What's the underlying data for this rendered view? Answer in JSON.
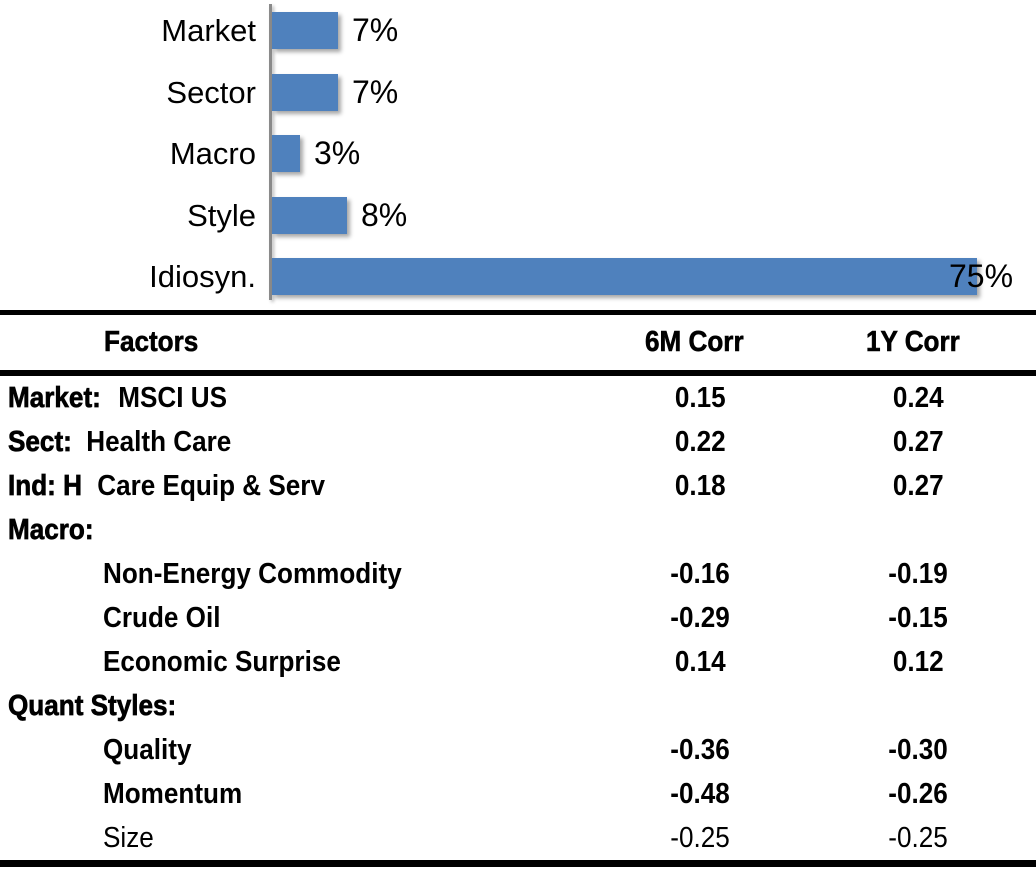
{
  "chart_data": [
    {
      "type": "bar",
      "orientation": "horizontal",
      "title": "",
      "xlabel": "",
      "ylabel": "",
      "categories": [
        "Market",
        "Sector",
        "Macro",
        "Style",
        "Idiosyn."
      ],
      "values": [
        7,
        7,
        3,
        8,
        75
      ],
      "value_labels": [
        "7%",
        "7%",
        "3%",
        "8%",
        "75%"
      ],
      "xlim": [
        0,
        75
      ],
      "grid": false,
      "legend": "none",
      "bar_color": "#4F81BD",
      "axis_color": "#8a8a8a"
    },
    {
      "type": "table",
      "columns": [
        "Factors",
        "6M Corr",
        "1Y Corr"
      ],
      "rows": [
        {
          "prefix": "Market:",
          "rest": " MSCI US",
          "indent": false,
          "light": false,
          "corr_6m": "0.15",
          "corr_1y": "0.24"
        },
        {
          "prefix": "Sect:",
          "rest": " Health Care",
          "indent": false,
          "light": false,
          "corr_6m": "0.22",
          "corr_1y": "0.27"
        },
        {
          "prefix": "Ind: H",
          "rest": " Care Equip & Serv",
          "indent": false,
          "light": false,
          "corr_6m": "0.18",
          "corr_1y": "0.27"
        },
        {
          "prefix": "Macro:",
          "rest": "",
          "indent": false,
          "light": false,
          "corr_6m": "",
          "corr_1y": ""
        },
        {
          "prefix": "",
          "rest": "Non-Energy Commodity",
          "indent": true,
          "light": false,
          "corr_6m": "-0.16",
          "corr_1y": "-0.19"
        },
        {
          "prefix": "",
          "rest": "Crude Oil",
          "indent": true,
          "light": false,
          "corr_6m": "-0.29",
          "corr_1y": "-0.15"
        },
        {
          "prefix": "",
          "rest": "Economic Surprise",
          "indent": true,
          "light": false,
          "corr_6m": "0.14",
          "corr_1y": "0.12"
        },
        {
          "prefix": "Quant Styles:",
          "rest": "",
          "indent": false,
          "light": false,
          "corr_6m": "",
          "corr_1y": ""
        },
        {
          "prefix": "",
          "rest": "Quality",
          "indent": true,
          "light": false,
          "corr_6m": "-0.36",
          "corr_1y": "-0.30"
        },
        {
          "prefix": "",
          "rest": "Momentum",
          "indent": true,
          "light": false,
          "corr_6m": "-0.48",
          "corr_1y": "-0.26"
        },
        {
          "prefix": "",
          "rest": "Size",
          "indent": true,
          "light": true,
          "corr_6m": "-0.25",
          "corr_1y": "-0.25"
        }
      ]
    }
  ]
}
